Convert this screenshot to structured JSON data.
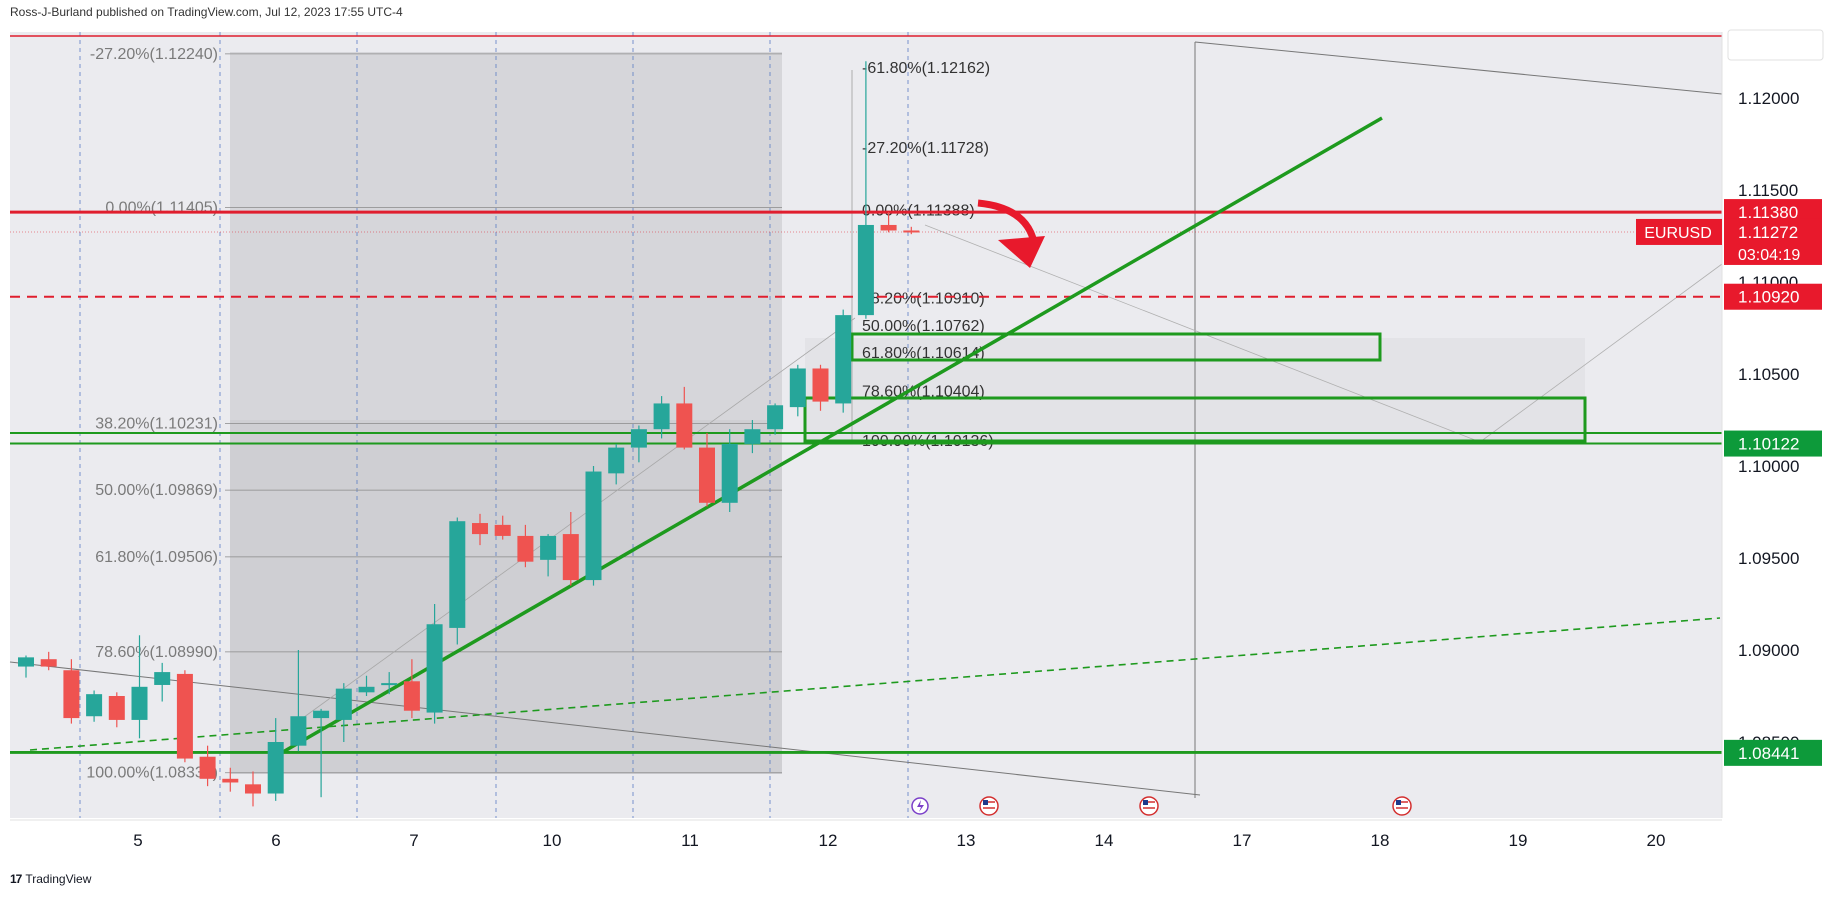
{
  "header": {
    "text": "Ross-J-Burland published on TradingView.com, Jul 12, 2023 17:55 UTC-4"
  },
  "footer": {
    "brand": "TradingView",
    "logo_glyph": "17"
  },
  "colors": {
    "up": "#26a69a",
    "down": "#ef5350",
    "green_line": "#1e9a1e",
    "red_line": "#e01e2e",
    "label_green": "#0d9a3a",
    "label_red": "#e8192c",
    "gray_zone": "#d6d6da",
    "bg_zone": "#ebebef"
  },
  "chart_data": {
    "type": "candlestick",
    "symbol": "EURUSD",
    "ylim": [
      1.081,
      1.124
    ],
    "y_ticks": [
      {
        "value": 1.12,
        "label": "1.12000"
      },
      {
        "value": 1.115,
        "label": "1.11500"
      },
      {
        "value": 1.11,
        "label": "1.11000"
      },
      {
        "value": 1.105,
        "label": "1.10500"
      },
      {
        "value": 1.1,
        "label": "1.10000"
      },
      {
        "value": 1.095,
        "label": "1.09500"
      },
      {
        "value": 1.09,
        "label": "1.09000"
      },
      {
        "value": 1.085,
        "label": "1.08500"
      }
    ],
    "x_ticks": [
      "5",
      "6",
      "7",
      "10",
      "11",
      "12",
      "13",
      "14",
      "17",
      "18",
      "19",
      "20"
    ],
    "candles": [
      {
        "o": 1.0891,
        "h": 1.0897,
        "l": 1.0885,
        "c": 1.0896
      },
      {
        "o": 1.0895,
        "h": 1.0899,
        "l": 1.0889,
        "c": 1.0891
      },
      {
        "o": 1.0889,
        "h": 1.0895,
        "l": 1.086,
        "c": 1.0863
      },
      {
        "o": 1.0864,
        "h": 1.0878,
        "l": 1.0861,
        "c": 1.0876
      },
      {
        "o": 1.0875,
        "h": 1.0877,
        "l": 1.0858,
        "c": 1.0862
      },
      {
        "o": 1.0862,
        "h": 1.0908,
        "l": 1.0852,
        "c": 1.088
      },
      {
        "o": 1.0881,
        "h": 1.0893,
        "l": 1.0872,
        "c": 1.0888
      },
      {
        "o": 1.0887,
        "h": 1.0889,
        "l": 1.0839,
        "c": 1.0841
      },
      {
        "o": 1.0842,
        "h": 1.0848,
        "l": 1.0826,
        "c": 1.083
      },
      {
        "o": 1.083,
        "h": 1.0836,
        "l": 1.0823,
        "c": 1.0828
      },
      {
        "o": 1.0827,
        "h": 1.0834,
        "l": 1.0815,
        "c": 1.0822
      },
      {
        "o": 1.0822,
        "h": 1.0863,
        "l": 1.0818,
        "c": 1.085
      },
      {
        "o": 1.0848,
        "h": 1.09,
        "l": 1.0845,
        "c": 1.0864
      },
      {
        "o": 1.0863,
        "h": 1.0868,
        "l": 1.082,
        "c": 1.0867
      },
      {
        "o": 1.0862,
        "h": 1.0882,
        "l": 1.085,
        "c": 1.0879
      },
      {
        "o": 1.0877,
        "h": 1.0886,
        "l": 1.0875,
        "c": 1.088
      },
      {
        "o": 1.0882,
        "h": 1.0888,
        "l": 1.0876,
        "c": 1.0882
      },
      {
        "o": 1.0883,
        "h": 1.0895,
        "l": 1.0863,
        "c": 1.0867
      },
      {
        "o": 1.0866,
        "h": 1.0925,
        "l": 1.086,
        "c": 1.0914
      },
      {
        "o": 1.0912,
        "h": 1.0972,
        "l": 1.0903,
        "c": 1.097
      },
      {
        "o": 1.0969,
        "h": 1.0974,
        "l": 1.0957,
        "c": 1.0963
      },
      {
        "o": 1.0968,
        "h": 1.0973,
        "l": 1.096,
        "c": 1.0962
      },
      {
        "o": 1.0962,
        "h": 1.0968,
        "l": 1.0945,
        "c": 1.0948
      },
      {
        "o": 1.0949,
        "h": 1.0963,
        "l": 1.094,
        "c": 1.0962
      },
      {
        "o": 1.0963,
        "h": 1.0975,
        "l": 1.0935,
        "c": 1.0938
      },
      {
        "o": 1.0938,
        "h": 1.1,
        "l": 1.0935,
        "c": 1.0997
      },
      {
        "o": 1.0996,
        "h": 1.1012,
        "l": 1.099,
        "c": 1.101
      },
      {
        "o": 1.101,
        "h": 1.1022,
        "l": 1.1002,
        "c": 1.102
      },
      {
        "o": 1.102,
        "h": 1.1038,
        "l": 1.1015,
        "c": 1.1034
      },
      {
        "o": 1.1034,
        "h": 1.1043,
        "l": 1.1009,
        "c": 1.101
      },
      {
        "o": 1.101,
        "h": 1.1018,
        "l": 1.0978,
        "c": 1.098
      },
      {
        "o": 1.098,
        "h": 1.102,
        "l": 1.0975,
        "c": 1.1012
      },
      {
        "o": 1.1012,
        "h": 1.1025,
        "l": 1.1007,
        "c": 1.102
      },
      {
        "o": 1.102,
        "h": 1.1034,
        "l": 1.1017,
        "c": 1.1033
      },
      {
        "o": 1.1032,
        "h": 1.1055,
        "l": 1.1027,
        "c": 1.1053
      },
      {
        "o": 1.1053,
        "h": 1.1055,
        "l": 1.103,
        "c": 1.1035
      },
      {
        "o": 1.1034,
        "h": 1.1085,
        "l": 1.1029,
        "c": 1.1082
      },
      {
        "o": 1.1082,
        "h": 1.122,
        "l": 1.108,
        "c": 1.1131
      },
      {
        "o": 1.1131,
        "h": 1.1138,
        "l": 1.1127,
        "c": 1.1128
      },
      {
        "o": 1.1128,
        "h": 1.113,
        "l": 1.1126,
        "c": 1.1127
      }
    ],
    "fib_left": {
      "levels": [
        {
          "label": "-27.20%(1.12240)",
          "value": 1.1224
        },
        {
          "label": "0.00%(1.11405)",
          "value": 1.11405
        },
        {
          "label": "38.20%(1.10231)",
          "value": 1.10231
        },
        {
          "label": "50.00%(1.09869)",
          "value": 1.09869
        },
        {
          "label": "61.80%(1.09506)",
          "value": 1.09506
        },
        {
          "label": "78.60%(1.08990)",
          "value": 1.0899
        },
        {
          "label": "100.00%(1.08333)",
          "value": 1.08333
        }
      ]
    },
    "fib_right": {
      "levels": [
        {
          "label": "-61.80%(1.12162)",
          "value": 1.12162
        },
        {
          "label": "-27.20%(1.11728)",
          "value": 1.11728
        },
        {
          "label": "0.00%(1.11388)",
          "value": 1.11388
        },
        {
          "label": "38.20%(1.10910)",
          "value": 1.1091
        },
        {
          "label": "50.00%(1.10762)",
          "value": 1.10762
        },
        {
          "label": "61.80%(1.10614)",
          "value": 1.10614
        },
        {
          "label": "78.60%(1.10404)",
          "value": 1.10404
        },
        {
          "label": "100.00%(1.10136)",
          "value": 1.10136
        }
      ]
    },
    "horizontal_levels": [
      {
        "value": 1.1138,
        "style": "solid",
        "color": "red"
      },
      {
        "value": 1.1092,
        "style": "dashed",
        "color": "red"
      },
      {
        "value": 1.10122,
        "style": "solid",
        "color": "green"
      },
      {
        "value": 1.08441,
        "style": "solid",
        "color": "green"
      }
    ],
    "price_labels": [
      {
        "value": 1.1138,
        "text": "1.11380",
        "color": "red"
      },
      {
        "value": 1.1092,
        "text": "1.10920",
        "color": "red"
      },
      {
        "value": 1.10122,
        "text": "1.10122",
        "color": "green"
      },
      {
        "value": 1.08441,
        "text": "1.08441",
        "color": "green"
      }
    ],
    "current_price": {
      "symbol": "EURUSD",
      "price": "1.11272",
      "countdown": "03:04:19",
      "value": 1.11272
    }
  }
}
